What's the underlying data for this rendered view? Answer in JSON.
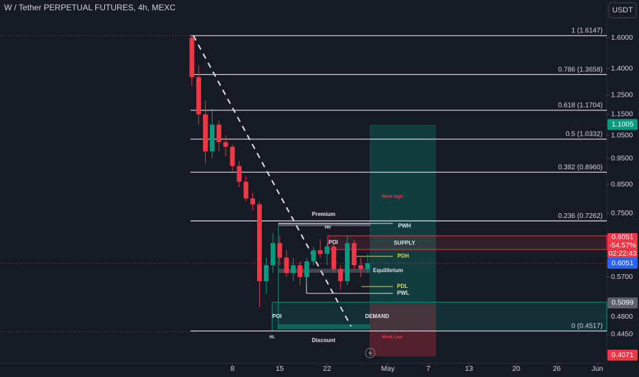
{
  "chart_data": {
    "type": "candlestick",
    "title": "W / Tether PERPETUAL FUTURES, 4h, MEXC",
    "currency": "USDT",
    "log_scale": true,
    "up_color": "#089981",
    "down_color": "#f23645",
    "x": [
      2,
      3,
      4,
      5,
      6,
      7,
      8,
      9,
      10,
      11,
      12,
      13,
      14,
      15,
      16,
      17,
      18,
      19,
      20,
      21,
      22,
      23,
      24,
      25,
      26,
      27,
      28
    ],
    "open": [
      1.6,
      1.35,
      1.15,
      0.98,
      1.1,
      1.02,
      1.0,
      0.92,
      0.86,
      0.8,
      0.78,
      0.56,
      0.6,
      0.66,
      0.62,
      0.58,
      0.6,
      0.57,
      0.61,
      0.64,
      0.63,
      0.65,
      0.59,
      0.56,
      0.66,
      0.6,
      0.59
    ],
    "high": [
      1.62,
      1.42,
      1.22,
      1.18,
      1.12,
      1.05,
      1.01,
      0.94,
      0.88,
      0.82,
      0.79,
      0.62,
      0.69,
      0.68,
      0.64,
      0.62,
      0.61,
      0.62,
      0.65,
      0.67,
      0.66,
      0.66,
      0.6,
      0.68,
      0.67,
      0.62,
      0.63
    ],
    "low": [
      1.3,
      1.1,
      0.93,
      0.95,
      0.98,
      0.96,
      0.9,
      0.84,
      0.79,
      0.76,
      0.5,
      0.53,
      0.58,
      0.6,
      0.57,
      0.56,
      0.55,
      0.55,
      0.6,
      0.62,
      0.6,
      0.58,
      0.54,
      0.55,
      0.59,
      0.57,
      0.58
    ],
    "close": [
      1.35,
      1.15,
      0.98,
      1.1,
      1.02,
      1.0,
      0.92,
      0.86,
      0.8,
      0.78,
      0.56,
      0.6,
      0.66,
      0.62,
      0.58,
      0.6,
      0.57,
      0.61,
      0.64,
      0.63,
      0.65,
      0.59,
      0.56,
      0.66,
      0.6,
      0.59,
      0.605
    ],
    "xlim": [
      -26.4,
      63.4
    ],
    "ylim": [
      0.393,
      1.883
    ],
    "xticks": [
      8,
      15,
      22,
      {
        "value": 31,
        "label": "May"
      },
      {
        "value": 37,
        "label": "7"
      },
      {
        "value": 43,
        "label": "13"
      },
      {
        "value": 50,
        "label": "20"
      },
      {
        "value": 56,
        "label": "26"
      },
      {
        "value": 62,
        "label": "Jun"
      }
    ],
    "yticks": [
      {
        "value": 1.6,
        "label": "1.6000"
      },
      {
        "value": 1.4,
        "label": "1.4000"
      },
      {
        "value": 1.25,
        "label": "1.2500"
      },
      {
        "value": 1.15,
        "label": "1.1500"
      },
      {
        "value": 1.05,
        "label": "1.0500"
      },
      {
        "value": 0.95,
        "label": "0.9500"
      },
      {
        "value": 0.85,
        "label": "0.8500"
      },
      {
        "value": 0.75,
        "label": "0.7500"
      },
      {
        "value": 0.57,
        "label": "0.5700"
      },
      {
        "value": 0.48,
        "label": "0.4800"
      },
      {
        "value": 0.445,
        "label": "0.4450"
      }
    ],
    "fib_levels": [
      {
        "label": "1 (1.6147)",
        "value": 1.6147
      },
      {
        "label": "0.786 (1.3658)",
        "value": 1.3658
      },
      {
        "label": "0.618 (1.1704)",
        "value": 1.1704
      },
      {
        "label": "0.5 (1.0332)",
        "value": 1.0332
      },
      {
        "label": "0.382 (0.8960)",
        "value": 0.896
      },
      {
        "label": "0.236 (0.7262)",
        "value": 0.7262
      },
      {
        "label": "0 (0.4517)",
        "value": 0.4517
      }
    ],
    "annotations": [
      "Week High",
      "Premium",
      "HH",
      "PWH",
      "POI",
      "SUPPLY",
      "PDH",
      "Equilibrium",
      "PDL",
      "PWL",
      "POI",
      "DEMAND",
      "HL",
      "Discount",
      "Week Low"
    ],
    "price_tags": [
      {
        "value": 1.1005,
        "color": "#089981"
      },
      {
        "value": 0.6051,
        "color": "#2962ff"
      },
      {
        "value": 0.5099,
        "color": "#5d606b"
      },
      {
        "value": 0.4071,
        "color": "#f23645"
      }
    ],
    "countdown_tag": {
      "price": 0.6051,
      "change": "-54.57%",
      "time": "02:22:43",
      "color": "#f23645"
    }
  }
}
